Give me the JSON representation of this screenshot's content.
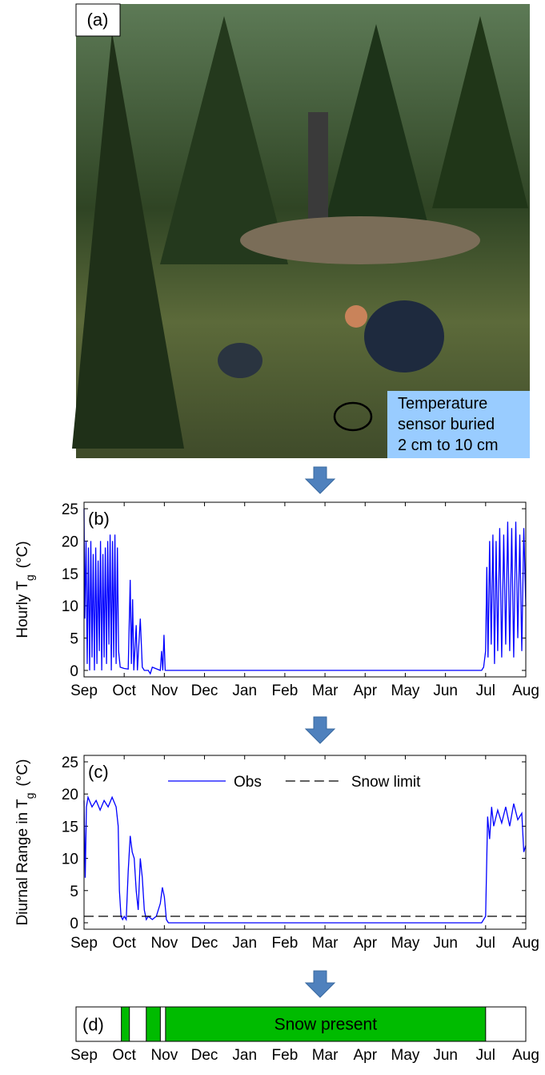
{
  "photo": {
    "label": "(a)",
    "annotation": [
      "Temperature",
      "sensor buried",
      "2 cm to 10 cm"
    ]
  },
  "chart_data": [
    {
      "type": "line",
      "panel_label": "(b)",
      "ylabel": {
        "text": "Hourly T",
        "subscript": "g",
        "unit": "(°C)"
      },
      "xlim": [
        0,
        11
      ],
      "ylim": [
        -1,
        26
      ],
      "yticks": [
        0,
        5,
        10,
        15,
        20,
        25
      ],
      "xticks": [
        {
          "value": 0,
          "label": "Sep"
        },
        {
          "value": 1,
          "label": "Oct"
        },
        {
          "value": 2,
          "label": "Nov"
        },
        {
          "value": 3,
          "label": "Dec"
        },
        {
          "value": 4,
          "label": "Jan"
        },
        {
          "value": 5,
          "label": "Feb"
        },
        {
          "value": 6,
          "label": "Mar"
        },
        {
          "value": 7,
          "label": "Apr"
        },
        {
          "value": 8,
          "label": "May"
        },
        {
          "value": 9,
          "label": "Jun"
        },
        {
          "value": 10,
          "label": "Jul"
        },
        {
          "value": 11,
          "label": "Aug"
        }
      ],
      "series": [
        {
          "color": "#0000ff",
          "x": [
            0,
            0.02,
            0.05,
            0.08,
            0.11,
            0.14,
            0.17,
            0.2,
            0.23,
            0.26,
            0.29,
            0.32,
            0.35,
            0.38,
            0.41,
            0.44,
            0.47,
            0.5,
            0.53,
            0.56,
            0.59,
            0.62,
            0.65,
            0.68,
            0.71,
            0.74,
            0.77,
            0.8,
            0.83,
            0.86,
            0.9,
            1.0,
            1.1,
            1.15,
            1.18,
            1.21,
            1.24,
            1.3,
            1.33,
            1.4,
            1.45,
            1.5,
            1.6,
            1.65,
            1.7,
            1.9,
            1.93,
            1.96,
            1.99,
            2.02,
            9.9,
            9.95,
            10.0,
            10.03,
            10.06,
            10.1,
            10.14,
            10.18,
            10.22,
            10.26,
            10.3,
            10.35,
            10.4,
            10.45,
            10.5,
            10.55,
            10.6,
            10.65,
            10.7,
            10.75,
            10.8,
            10.85,
            10.9,
            10.95,
            11.0
          ],
          "values": [
            25,
            8,
            20,
            1,
            19,
            0,
            20,
            2,
            18,
            0,
            19,
            1,
            17,
            3,
            20,
            0,
            18,
            2,
            19,
            1,
            20,
            4,
            21,
            0,
            20,
            2,
            21,
            1,
            19,
            3,
            0.5,
            0.3,
            0.2,
            14,
            1,
            11,
            0,
            7,
            0,
            8,
            0.5,
            0,
            0,
            -0.5,
            0.5,
            0,
            3,
            0,
            5.5,
            0,
            0,
            0.5,
            3,
            16,
            2,
            20,
            4,
            21,
            1,
            20,
            3,
            22,
            2,
            21,
            4,
            23,
            3,
            22,
            2,
            23,
            5,
            21,
            3,
            22,
            10
          ]
        }
      ]
    },
    {
      "type": "line",
      "panel_label": "(c)",
      "ylabel": {
        "text": "Diurnal Range in T",
        "subscript": "g",
        "unit": "(°C)"
      },
      "xlim": [
        0,
        11
      ],
      "ylim": [
        -1,
        26
      ],
      "yticks": [
        0,
        5,
        10,
        15,
        20,
        25
      ],
      "xticks": [
        {
          "value": 0,
          "label": "Sep"
        },
        {
          "value": 1,
          "label": "Oct"
        },
        {
          "value": 2,
          "label": "Nov"
        },
        {
          "value": 3,
          "label": "Dec"
        },
        {
          "value": 4,
          "label": "Jan"
        },
        {
          "value": 5,
          "label": "Feb"
        },
        {
          "value": 6,
          "label": "Mar"
        },
        {
          "value": 7,
          "label": "Apr"
        },
        {
          "value": 8,
          "label": "May"
        },
        {
          "value": 9,
          "label": "Jun"
        },
        {
          "value": 10,
          "label": "Jul"
        },
        {
          "value": 11,
          "label": "Aug"
        }
      ],
      "series": [
        {
          "name": "Obs",
          "color": "#0000ff",
          "x": [
            0,
            0.03,
            0.06,
            0.1,
            0.2,
            0.3,
            0.4,
            0.5,
            0.6,
            0.7,
            0.8,
            0.85,
            0.88,
            0.92,
            0.96,
            1.0,
            1.05,
            1.1,
            1.15,
            1.2,
            1.25,
            1.3,
            1.35,
            1.4,
            1.45,
            1.5,
            1.55,
            1.6,
            1.7,
            1.8,
            1.9,
            1.95,
            2.0,
            2.05,
            2.1,
            9.9,
            10.0,
            10.05,
            10.1,
            10.15,
            10.2,
            10.3,
            10.4,
            10.5,
            10.6,
            10.7,
            10.8,
            10.9,
            10.95,
            11.0
          ],
          "values": [
            19,
            7,
            18,
            19.5,
            18,
            19,
            17.5,
            19,
            18,
            19.5,
            18,
            15,
            5,
            1,
            0.5,
            1,
            0.5,
            8,
            13.5,
            11,
            10,
            5,
            2,
            10,
            7,
            2,
            0.5,
            1,
            0.5,
            1,
            3,
            5.5,
            4,
            0.5,
            0,
            0,
            1,
            16.5,
            13,
            18,
            15,
            17.5,
            15.5,
            18,
            15,
            18.5,
            16,
            17,
            11,
            12
          ]
        },
        {
          "name": "Snow limit",
          "color": "#000000",
          "dashed": true,
          "x": [
            0,
            11
          ],
          "values": [
            1,
            1
          ]
        }
      ]
    },
    {
      "type": "span",
      "panel_label": "(d)",
      "label": "Snow present",
      "color": "#00bb00",
      "xlim": [
        0,
        11
      ],
      "xticks": [
        {
          "value": 0,
          "label": "Sep"
        },
        {
          "value": 1,
          "label": "Oct"
        },
        {
          "value": 2,
          "label": "Nov"
        },
        {
          "value": 3,
          "label": "Dec"
        },
        {
          "value": 4,
          "label": "Jan"
        },
        {
          "value": 5,
          "label": "Feb"
        },
        {
          "value": 6,
          "label": "Mar"
        },
        {
          "value": 7,
          "label": "Apr"
        },
        {
          "value": 8,
          "label": "May"
        },
        {
          "value": 9,
          "label": "Jun"
        },
        {
          "value": 10,
          "label": "Jul"
        },
        {
          "value": 11,
          "label": "Aug"
        }
      ],
      "spans": [
        {
          "start": 0.93,
          "end": 1.13
        },
        {
          "start": 1.55,
          "end": 1.9
        },
        {
          "start": 2.03,
          "end": 10.0
        }
      ]
    }
  ]
}
